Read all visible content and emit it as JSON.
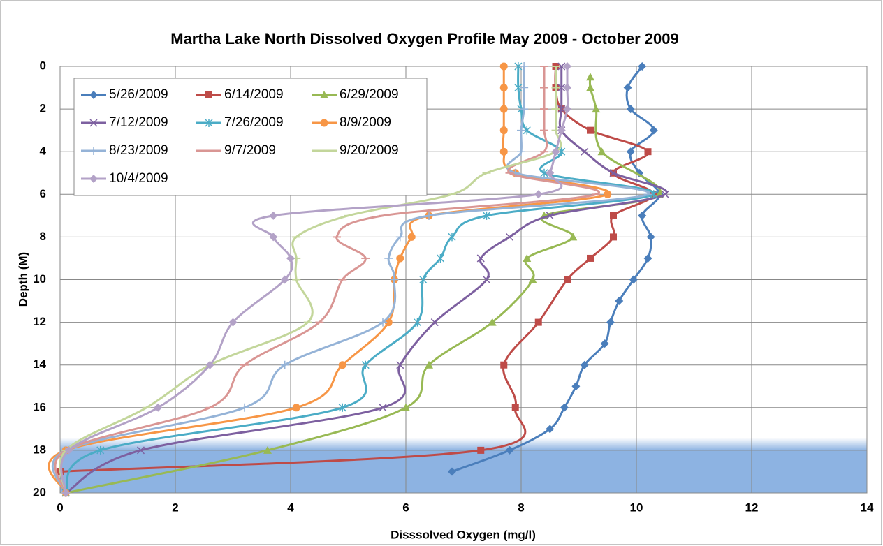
{
  "chart_data": {
    "type": "scatter",
    "title": "Martha Lake North Dissolved Oxygen Profile  May 2009 - October 2009",
    "x_label": "Disssolved Oxygen (mg/l)",
    "y_label": "Depth (M)",
    "xlim": [
      0,
      14
    ],
    "xticks": [
      0,
      2,
      4,
      6,
      8,
      10,
      12,
      14
    ],
    "ylim": [
      0,
      20
    ],
    "yticks": [
      0,
      2,
      4,
      6,
      8,
      10,
      12,
      14,
      16,
      18,
      20
    ],
    "y_inverted": true,
    "grid": true,
    "smooth": true,
    "series": [
      {
        "name": "5/26/2009",
        "color": "#4a7ebb",
        "marker": "diamond",
        "x": [
          10.1,
          9.85,
          9.9,
          10.3,
          9.9,
          10.05,
          10.4,
          10.1,
          10.25,
          10.2,
          9.95,
          9.7,
          9.55,
          9.45,
          9.1,
          8.95,
          8.75,
          8.5,
          7.8,
          6.8
        ],
        "values": [
          0,
          1,
          2,
          3,
          4,
          5,
          6,
          7,
          8,
          9,
          10,
          11,
          12,
          13,
          14,
          15,
          16,
          17,
          18,
          19
        ]
      },
      {
        "name": "6/14/2009",
        "color": "#be4b48",
        "marker": "square",
        "x": [
          8.6,
          8.6,
          8.7,
          9.2,
          10.2,
          9.6,
          10.3,
          9.6,
          9.6,
          9.2,
          8.8,
          8.3,
          7.7,
          7.9,
          7.3,
          0
        ],
        "values": [
          0,
          1,
          2,
          3,
          4,
          5,
          6,
          7,
          8,
          9,
          10,
          12,
          14,
          16,
          18,
          19
        ]
      },
      {
        "name": "6/29/2009",
        "color": "#98b954",
        "marker": "triangle",
        "x": [
          9.2,
          9.2,
          9.3,
          9.4,
          10.4,
          8.4,
          8.9,
          8.1,
          8.2,
          7.5,
          6.4,
          6.0,
          3.6,
          0.1
        ],
        "values": [
          0.5,
          1,
          2,
          4,
          6,
          7,
          8,
          9,
          10,
          12,
          14,
          16,
          18,
          20
        ]
      },
      {
        "name": "7/12/2009",
        "color": "#7d60a0",
        "marker": "x",
        "x": [
          8.7,
          8.7,
          8.7,
          8.7,
          9.1,
          9.6,
          10.5,
          8.5,
          7.8,
          7.3,
          7.4,
          6.5,
          5.9,
          5.6,
          1.4,
          0.1
        ],
        "values": [
          0,
          1,
          2,
          3,
          4,
          5,
          6,
          7,
          8,
          9,
          10,
          12,
          14,
          16,
          18,
          20
        ]
      },
      {
        "name": "7/26/2009",
        "color": "#4bacc6",
        "marker": "star",
        "x": [
          7.95,
          7.95,
          8.0,
          8.1,
          8.7,
          8.4,
          10.3,
          7.4,
          6.8,
          6.6,
          6.3,
          6.2,
          5.3,
          4.9,
          0.7,
          0.1
        ],
        "values": [
          0,
          1,
          2,
          3,
          4,
          5,
          6,
          7,
          8,
          9,
          10,
          12,
          14,
          16,
          18,
          20
        ]
      },
      {
        "name": "8/9/2009",
        "color": "#f79646",
        "marker": "circle",
        "x": [
          7.7,
          7.7,
          7.7,
          7.7,
          7.7,
          7.9,
          9.5,
          6.4,
          6.1,
          5.9,
          5.8,
          5.7,
          4.9,
          4.1,
          0.1,
          0.1
        ],
        "values": [
          0,
          1,
          2,
          3,
          4,
          5,
          6,
          7,
          8,
          9,
          10,
          12,
          14,
          16,
          18,
          20
        ]
      },
      {
        "name": "8/23/2009",
        "color": "#95b3d7",
        "marker": "plus",
        "x": [
          8.05,
          8.05,
          8.05,
          8.0,
          8.0,
          7.9,
          10.2,
          6.4,
          5.9,
          5.7,
          5.8,
          5.6,
          3.9,
          3.2,
          0.1,
          0.1
        ],
        "values": [
          0,
          1,
          2,
          3,
          4,
          5,
          6,
          7,
          8,
          9,
          10,
          12,
          14,
          16,
          18,
          20
        ]
      },
      {
        "name": "9/7/2009",
        "color": "#d99694",
        "marker": "dash",
        "x": [
          8.4,
          8.4,
          8.4,
          8.4,
          8.4,
          7.8,
          9.3,
          5.6,
          4.8,
          5.3,
          4.9,
          4.5,
          3.2,
          2.6,
          0.1,
          0.1
        ],
        "values": [
          0,
          1,
          2,
          3,
          4,
          5,
          6,
          7,
          8,
          9,
          10,
          12,
          14,
          16,
          18,
          20
        ]
      },
      {
        "name": "9/20/2009",
        "color": "#c3d69b",
        "marker": "dash",
        "x": [
          8.6,
          8.6,
          8.6,
          8.6,
          8.6,
          7.4,
          6.8,
          5.0,
          4.1,
          4.1,
          4.1,
          4.3,
          2.6,
          1.5,
          0.1,
          0.1
        ],
        "values": [
          0,
          1,
          2,
          3,
          4,
          5,
          6,
          7,
          8,
          9,
          10,
          12,
          14,
          16,
          18,
          20
        ]
      },
      {
        "name": "10/4/2009",
        "color": "#b3a2c7",
        "marker": "diamond",
        "x": [
          8.8,
          8.8,
          8.8,
          8.7,
          8.6,
          8.5,
          8.3,
          3.7,
          3.7,
          4.0,
          3.9,
          3.0,
          2.6,
          1.7,
          0.15,
          0.1
        ],
        "values": [
          0,
          1,
          2,
          3,
          4,
          5,
          6,
          7,
          8,
          9,
          10,
          12,
          14,
          16,
          18,
          20
        ]
      }
    ]
  }
}
